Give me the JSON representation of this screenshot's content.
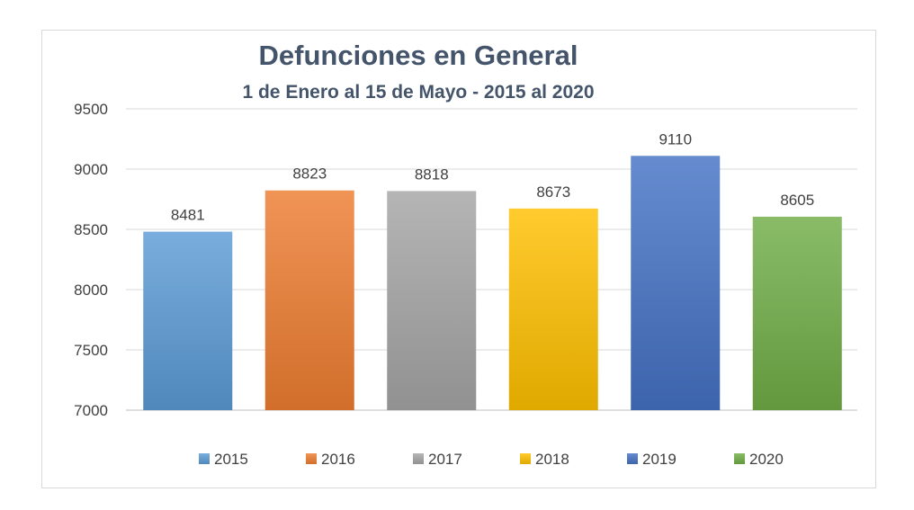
{
  "chart_data": {
    "type": "bar",
    "title": "Defunciones en General",
    "subtitle": "1 de Enero al 15 de Mayo - 2015 al 2020",
    "categories": [
      "2015",
      "2016",
      "2017",
      "2018",
      "2019",
      "2020"
    ],
    "values": [
      8481,
      8823,
      8818,
      8673,
      9110,
      8605
    ],
    "ylim": [
      7000,
      9500
    ],
    "yticks": [
      7000,
      7500,
      8000,
      8500,
      9000,
      9500
    ],
    "grid": true,
    "legend": "bottom",
    "colors": [
      "#5b9bd5",
      "#ed7d31",
      "#a5a5a5",
      "#ffc000",
      "#4472c4",
      "#70ad47"
    ]
  }
}
